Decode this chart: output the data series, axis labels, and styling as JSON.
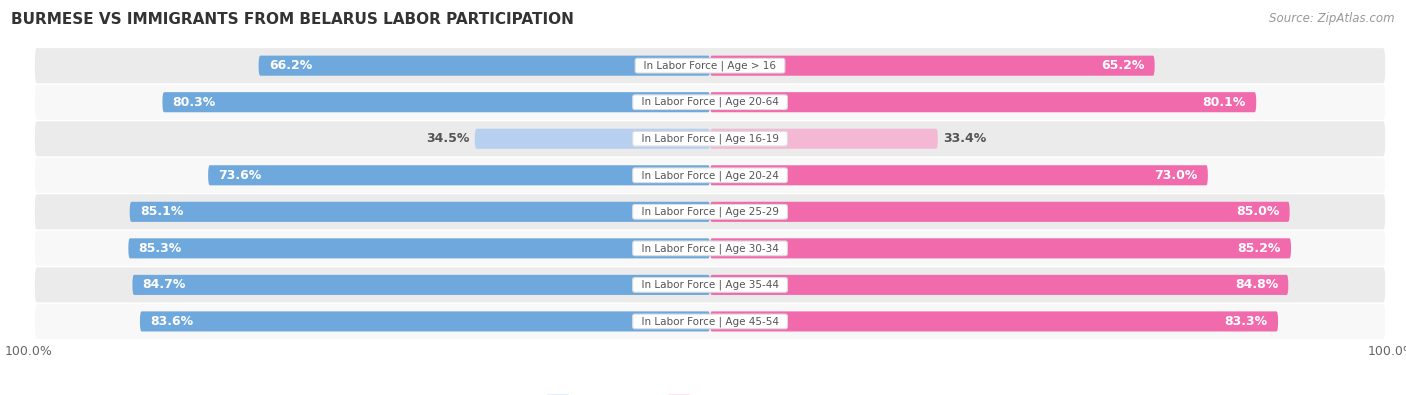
{
  "title": "BURMESE VS IMMIGRANTS FROM BELARUS LABOR PARTICIPATION",
  "source": "Source: ZipAtlas.com",
  "categories": [
    "In Labor Force | Age > 16",
    "In Labor Force | Age 20-64",
    "In Labor Force | Age 16-19",
    "In Labor Force | Age 20-24",
    "In Labor Force | Age 25-29",
    "In Labor Force | Age 30-34",
    "In Labor Force | Age 35-44",
    "In Labor Force | Age 45-54"
  ],
  "burmese_values": [
    66.2,
    80.3,
    34.5,
    73.6,
    85.1,
    85.3,
    84.7,
    83.6
  ],
  "belarus_values": [
    65.2,
    80.1,
    33.4,
    73.0,
    85.0,
    85.2,
    84.8,
    83.3
  ],
  "burmese_color": "#6fa8dc",
  "burmese_color_light": "#b8d0f0",
  "belarus_color": "#f06aac",
  "belarus_color_light": "#f4b8d4",
  "row_bg_color_odd": "#ebebeb",
  "row_bg_color_even": "#f8f8f8",
  "max_value": 100.0,
  "label_fontsize": 9,
  "title_fontsize": 11,
  "legend_fontsize": 10,
  "bar_height": 0.55,
  "center_label_color": "#555555"
}
